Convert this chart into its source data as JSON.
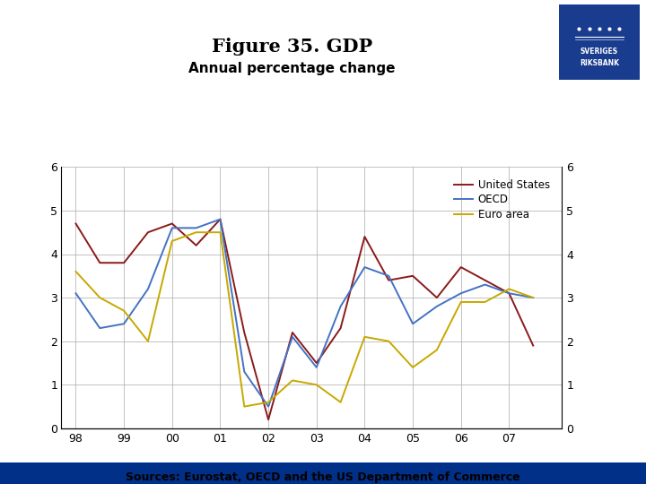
{
  "title": "Figure 35. GDP",
  "subtitle": "Annual percentage change",
  "us_data": {
    "label": "United States",
    "color": "#8B1A1A",
    "x": [
      1998,
      1998.5,
      1999,
      1999.5,
      2000,
      2000.5,
      2001,
      2001.5,
      2002,
      2002.5,
      2003,
      2003.5,
      2004,
      2004.5,
      2005,
      2005.5,
      2006,
      2006.5,
      2007,
      2007.5
    ],
    "y": [
      4.7,
      3.8,
      3.8,
      4.5,
      4.7,
      4.2,
      4.8,
      2.2,
      0.2,
      2.2,
      1.5,
      2.3,
      4.4,
      3.4,
      3.5,
      3.0,
      3.7,
      3.4,
      3.1,
      1.9
    ]
  },
  "oecd_data": {
    "label": "OECD",
    "color": "#4472C4",
    "x": [
      1998,
      1998.5,
      1999,
      1999.5,
      2000,
      2000.5,
      2001,
      2001.5,
      2002,
      2002.5,
      2003,
      2003.5,
      2004,
      2004.5,
      2005,
      2005.5,
      2006,
      2006.5,
      2007,
      2007.5
    ],
    "y": [
      3.1,
      2.3,
      2.4,
      3.2,
      4.6,
      4.6,
      4.8,
      1.3,
      0.5,
      2.1,
      1.4,
      2.8,
      3.7,
      3.5,
      2.4,
      2.8,
      3.1,
      3.3,
      3.1,
      3.0
    ]
  },
  "euro_data": {
    "label": "Euro area",
    "color": "#C8A800",
    "x": [
      1998,
      1998.5,
      1999,
      1999.5,
      2000,
      2000.5,
      2001,
      2001.5,
      2002,
      2002.5,
      2003,
      2003.5,
      2004,
      2004.5,
      2005,
      2005.5,
      2006,
      2006.5,
      2007,
      2007.5
    ],
    "y": [
      3.6,
      3.0,
      2.7,
      2.0,
      4.3,
      4.5,
      4.5,
      0.5,
      0.6,
      1.1,
      1.0,
      0.6,
      2.1,
      2.0,
      1.4,
      1.8,
      2.9,
      2.9,
      3.2,
      3.0
    ]
  },
  "ylim": [
    0,
    6
  ],
  "yticks": [
    0,
    1,
    2,
    3,
    4,
    5,
    6
  ],
  "xlim_min": 1997.7,
  "xlim_max": 2008.1,
  "x_tick_years": [
    1998,
    1999,
    2000,
    2001,
    2002,
    2003,
    2004,
    2005,
    2006,
    2007
  ],
  "grid_color": "#aaaaaa",
  "background_color": "#ffffff",
  "footer_text": "Sources: Eurostat, OECD and the US Department of Commerce",
  "footer_bar_color": "#003087",
  "logo_bar_color": "#1a3c8f",
  "title_fontsize": 15,
  "subtitle_fontsize": 11,
  "tick_fontsize": 9,
  "legend_fontsize": 8.5,
  "footer_fontsize": 9
}
